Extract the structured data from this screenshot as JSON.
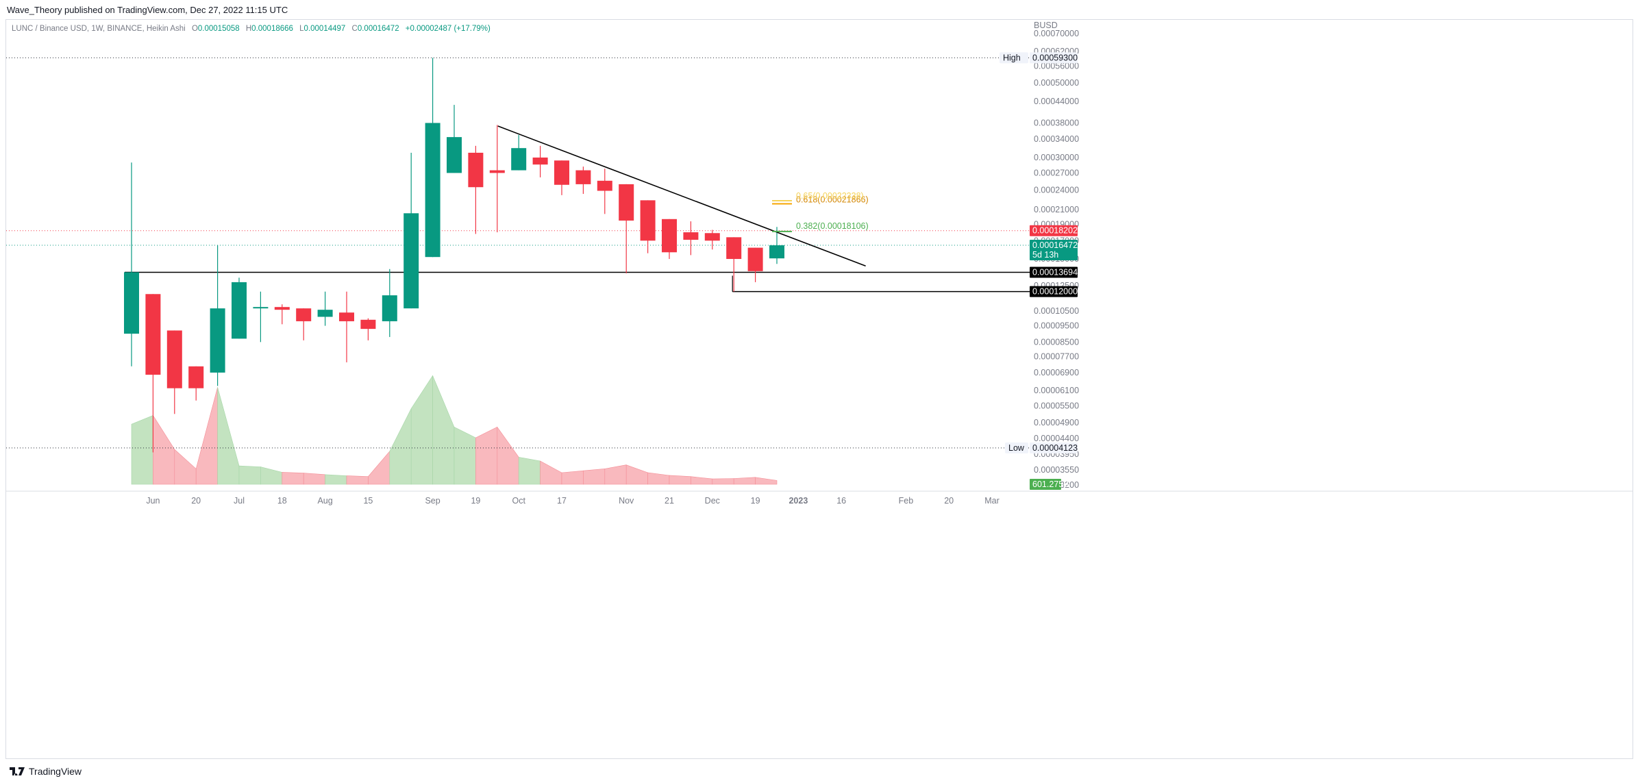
{
  "header": {
    "published": "Wave_Theory published on TradingView.com, Dec 27, 2022 11:15 UTC"
  },
  "legend": {
    "symbol": "LUNC / Binance USD, 1W, BINANCE, Heikin Ashi",
    "open_label": "O",
    "open": "0.00015058",
    "high_label": "H",
    "high": "0.00018666",
    "low_label": "L",
    "low": "0.00014497",
    "close_label": "C",
    "close": "0.00016472",
    "change": "+0.00002487 (+17.79%)"
  },
  "footer": {
    "brand": "TradingView"
  },
  "colors": {
    "up": "#089981",
    "down": "#f23645",
    "vol_up": "#c3e3c0",
    "vol_down": "#f9b9be",
    "fib_382": "#4caf50",
    "fib_618": "#f7a600",
    "fib_65": "#f5d35a"
  },
  "chart_data": {
    "type": "candlestick",
    "style": "Heikin Ashi",
    "currency": "BUSD",
    "scale": "log",
    "y_ticks": [
      0.0007,
      0.00062,
      0.00056,
      0.0005,
      0.00044,
      0.00038,
      0.00034,
      0.0003,
      0.00027,
      0.00024,
      0.00021,
      0.00019,
      0.00017,
      0.00015,
      0.000125,
      0.000105,
      9.5e-05,
      8.5e-05,
      7.7e-05,
      6.9e-05,
      6.1e-05,
      5.5e-05,
      4.9e-05,
      4.4e-05,
      3.95e-05,
      3.55e-05,
      3.2e-05
    ],
    "x_ticks": [
      {
        "label": "Jun",
        "i": 1
      },
      {
        "label": "20",
        "i": 3
      },
      {
        "label": "Jul",
        "i": 5
      },
      {
        "label": "18",
        "i": 7
      },
      {
        "label": "Aug",
        "i": 9
      },
      {
        "label": "15",
        "i": 11
      },
      {
        "label": "Sep",
        "i": 14
      },
      {
        "label": "19",
        "i": 16
      },
      {
        "label": "Oct",
        "i": 18
      },
      {
        "label": "17",
        "i": 20
      },
      {
        "label": "Nov",
        "i": 23
      },
      {
        "label": "21",
        "i": 25
      },
      {
        "label": "Dec",
        "i": 27
      },
      {
        "label": "19",
        "i": 29
      },
      {
        "label": "2023",
        "i": 31
      },
      {
        "label": "16",
        "i": 33
      },
      {
        "label": "Feb",
        "i": 36
      },
      {
        "label": "20",
        "i": 38
      },
      {
        "label": "Mar",
        "i": 40
      }
    ],
    "candles": [
      {
        "o": 9e-05,
        "h": 0.00029,
        "l": 7.2e-05,
        "c": 0.000137
      },
      {
        "o": 0.000118,
        "h": 0.000118,
        "l": 4e-05,
        "c": 6.8e-05
      },
      {
        "o": 9.2e-05,
        "h": 9.2e-05,
        "l": 5.2e-05,
        "c": 6.2e-05
      },
      {
        "o": 7.2e-05,
        "h": 7.2e-05,
        "l": 5.7e-05,
        "c": 6.2e-05
      },
      {
        "o": 6.9e-05,
        "h": 0.000165,
        "l": 6.3e-05,
        "c": 0.000107
      },
      {
        "o": 8.7e-05,
        "h": 0.000132,
        "l": 8.7e-05,
        "c": 0.000128
      },
      {
        "o": 0.000108,
        "h": 0.00012,
        "l": 8.5e-05,
        "c": 0.000108
      },
      {
        "o": 0.000108,
        "h": 0.00011,
        "l": 9.6e-05,
        "c": 0.000106
      },
      {
        "o": 0.000107,
        "h": 0.000107,
        "l": 8.6e-05,
        "c": 9.8e-05
      },
      {
        "o": 0.000101,
        "h": 0.00012,
        "l": 9.5e-05,
        "c": 0.000106
      },
      {
        "o": 0.000104,
        "h": 0.00012,
        "l": 7.4e-05,
        "c": 9.8e-05
      },
      {
        "o": 9.9e-05,
        "h": 0.0001,
        "l": 8.6e-05,
        "c": 9.3e-05
      },
      {
        "o": 9.8e-05,
        "h": 0.00014,
        "l": 8.8e-05,
        "c": 0.000117
      },
      {
        "o": 0.000107,
        "h": 0.00031,
        "l": 0.000107,
        "c": 0.000205
      },
      {
        "o": 0.000152,
        "h": 0.000593,
        "l": 0.000152,
        "c": 0.00038
      },
      {
        "o": 0.00027,
        "h": 0.00043,
        "l": 0.00027,
        "c": 0.000345
      },
      {
        "o": 0.00031,
        "h": 0.000325,
        "l": 0.000178,
        "c": 0.000245
      },
      {
        "o": 0.000275,
        "h": 0.000375,
        "l": 0.00018,
        "c": 0.00027
      },
      {
        "o": 0.000275,
        "h": 0.00035,
        "l": 0.000275,
        "c": 0.00032
      },
      {
        "o": 0.0003,
        "h": 0.000325,
        "l": 0.000262,
        "c": 0.000286
      },
      {
        "o": 0.000294,
        "h": 0.000294,
        "l": 0.000232,
        "c": 0.000249
      },
      {
        "o": 0.000275,
        "h": 0.000282,
        "l": 0.000234,
        "c": 0.00025
      },
      {
        "o": 0.000256,
        "h": 0.000278,
        "l": 0.000204,
        "c": 0.000239
      },
      {
        "o": 0.00025,
        "h": 0.00025,
        "l": 0.000136,
        "c": 0.000195
      },
      {
        "o": 0.000224,
        "h": 0.000224,
        "l": 0.000156,
        "c": 0.00017
      },
      {
        "o": 0.000197,
        "h": 0.000197,
        "l": 0.00015,
        "c": 0.000157
      },
      {
        "o": 0.00018,
        "h": 0.000194,
        "l": 0.000154,
        "c": 0.000171
      },
      {
        "o": 0.000179,
        "h": 0.000183,
        "l": 0.00016,
        "c": 0.00017
      },
      {
        "o": 0.000174,
        "h": 0.000174,
        "l": 0.00012,
        "c": 0.00015
      },
      {
        "o": 0.000162,
        "h": 0.000162,
        "l": 0.000128,
        "c": 0.000138
      },
      {
        "o": 0.0001506,
        "h": 0.0001867,
        "l": 0.000145,
        "c": 0.0001647
      }
    ],
    "volume": {
      "values": [
        310,
        355,
        180,
        80,
        500,
        95,
        90,
        62,
        58,
        50,
        44,
        40,
        170,
        390,
        560,
        295,
        240,
        295,
        140,
        120,
        60,
        70,
        80,
        100,
        60,
        46,
        40,
        28,
        30,
        36,
        20
      ],
      "last": "601.275B"
    },
    "horizontal_levels": [
      {
        "value": 0.00013694,
        "label": "0.00013694",
        "style": "solid"
      },
      {
        "value": 0.00012,
        "label": "0.00012000",
        "style": "solid"
      }
    ],
    "trendline": {
      "from": {
        "i": 17,
        "price": 0.000372
      },
      "to": {
        "i": 34,
        "price": 0.000143
      }
    },
    "fib_levels": [
      {
        "label": "0.382(0.00018106)",
        "value": 0.00018106
      },
      {
        "label": "0.618(0.00021866)",
        "value": 0.00021866
      },
      {
        "label": "0.65(0.00022338)",
        "value": 0.00022338
      }
    ],
    "price_tags": [
      {
        "label": "High",
        "value": "0.00059300",
        "price": 0.000593
      },
      {
        "label": "Low",
        "value": "0.00004123",
        "price": 4.123e-05
      },
      {
        "label": "",
        "value": "0.00018202",
        "price": 0.00018202
      },
      {
        "label": "",
        "value": "0.00016472",
        "sub": "5d 13h",
        "price": 0.00016472
      }
    ]
  }
}
